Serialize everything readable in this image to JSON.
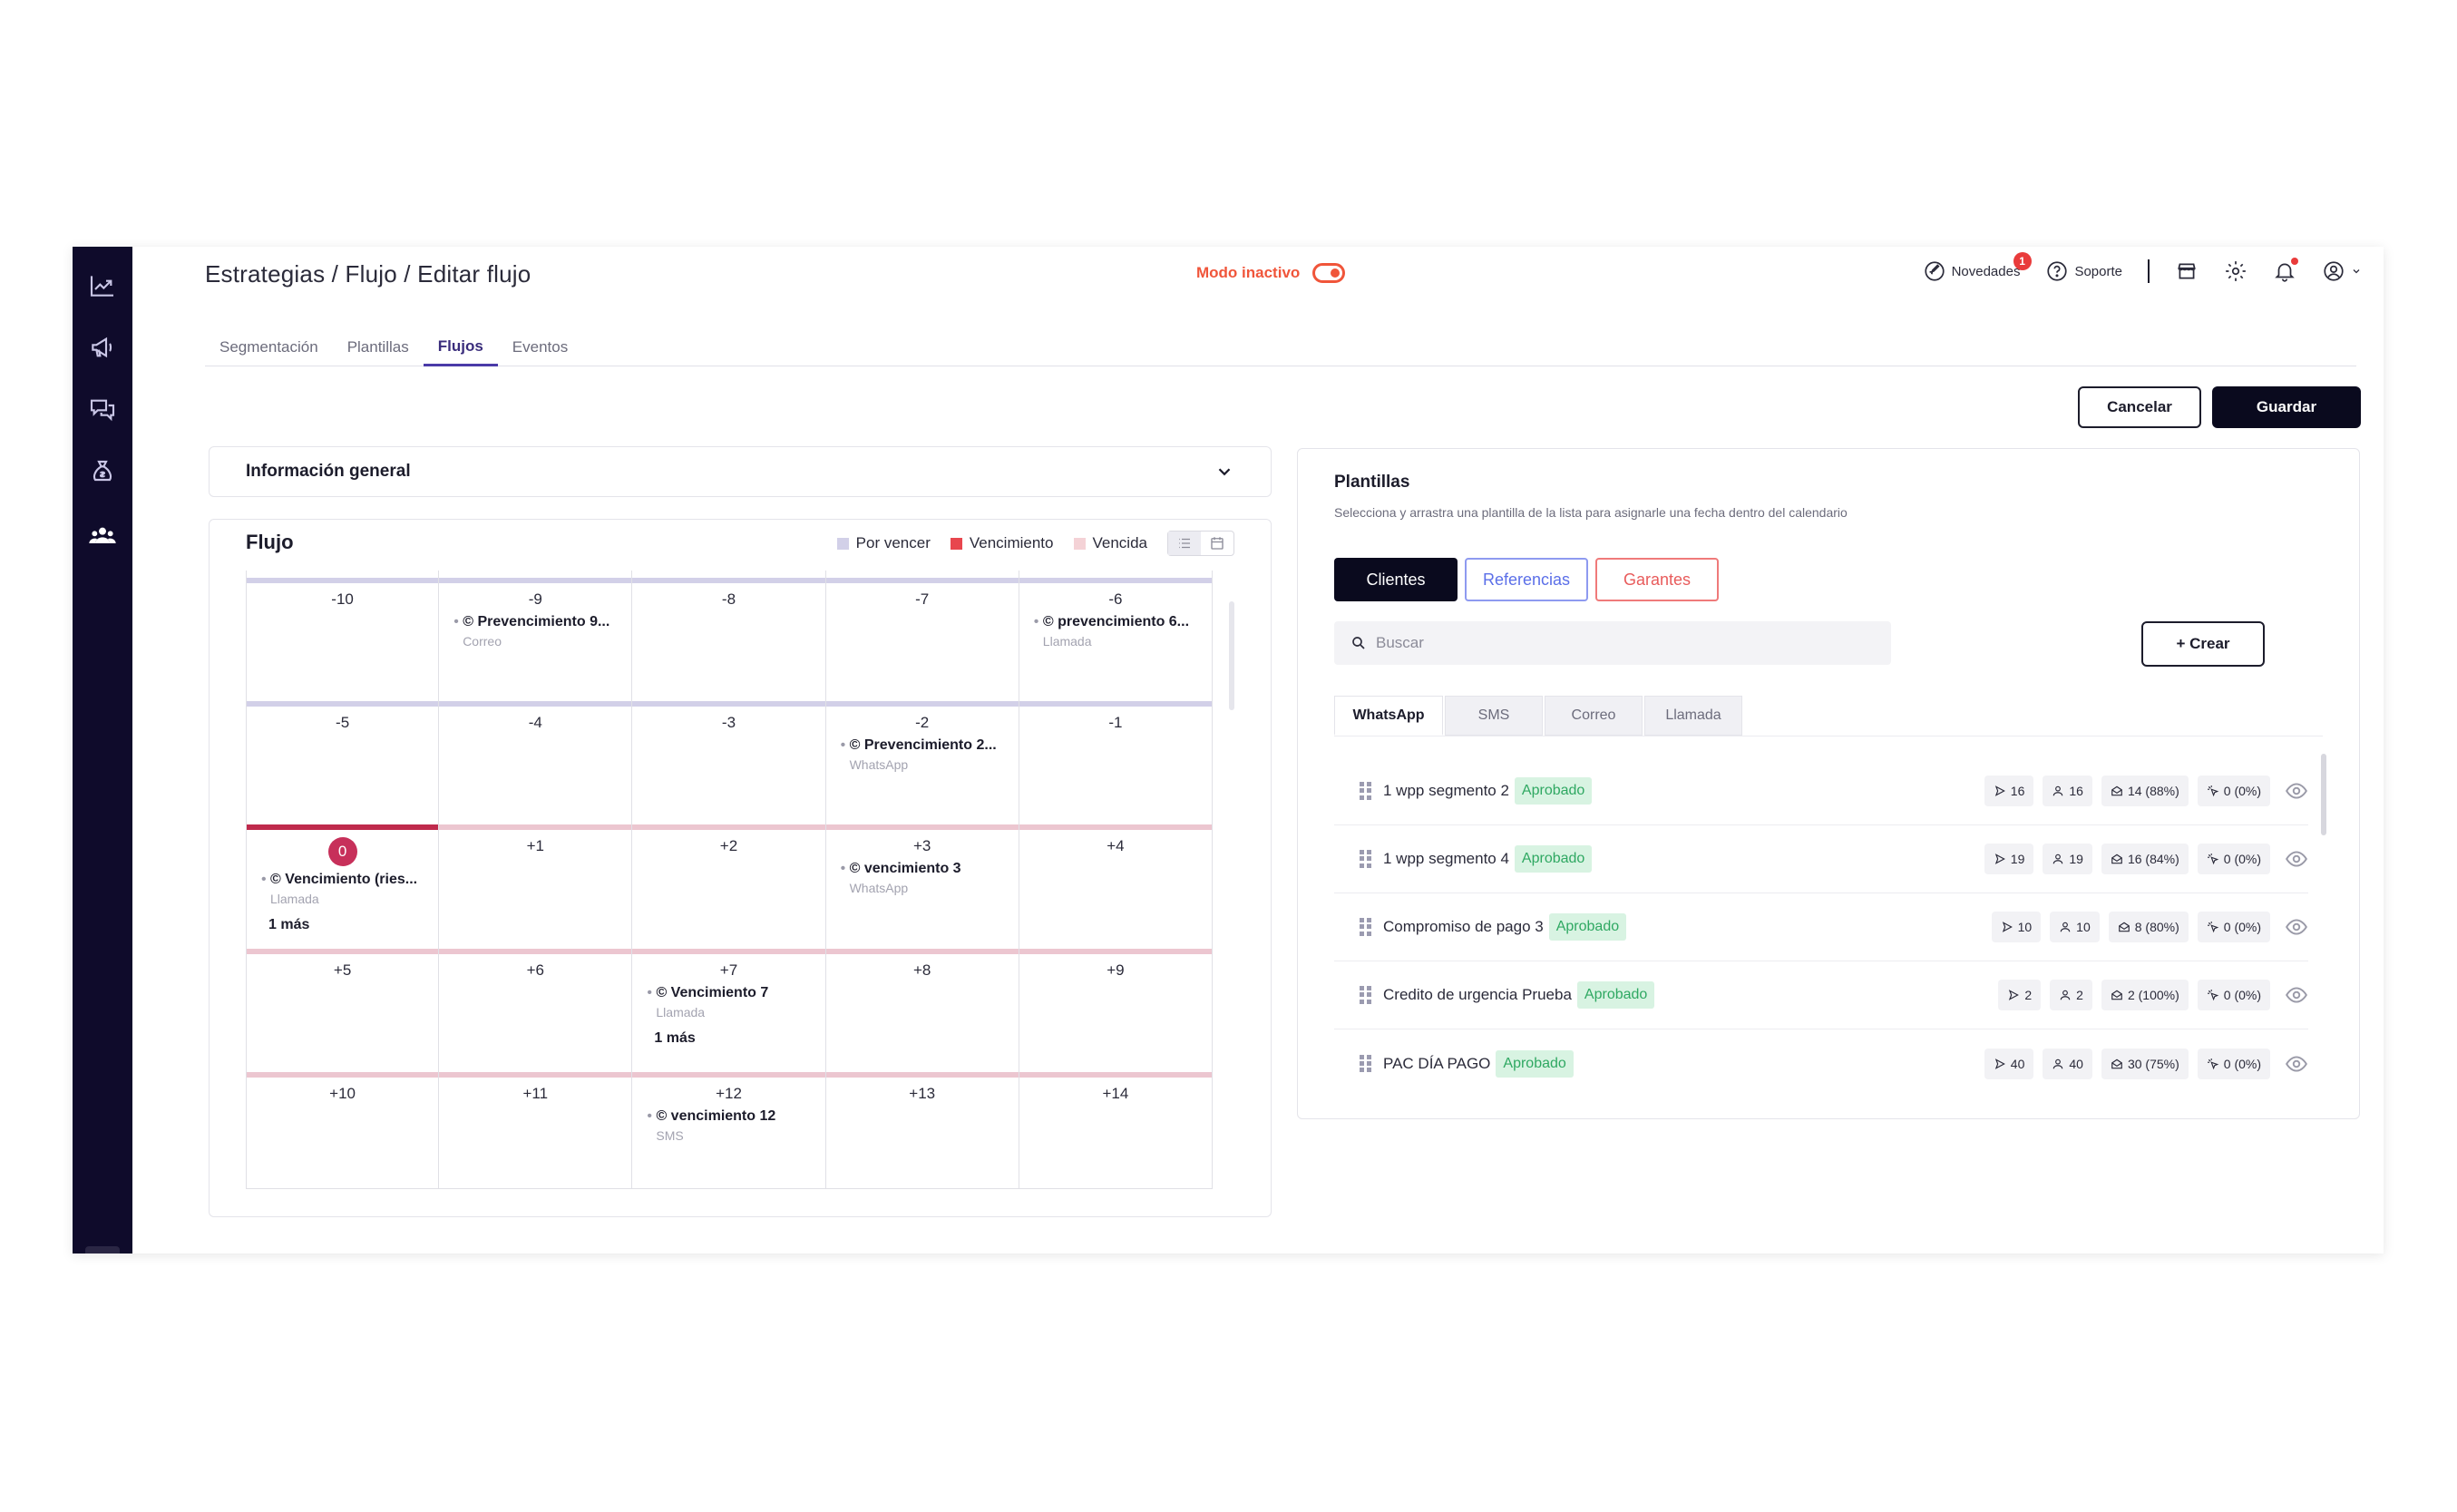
{
  "sidebar": {
    "items": [
      {
        "icon": "trend-chart-icon"
      },
      {
        "icon": "megaphone-icon"
      },
      {
        "icon": "chat-bubbles-icon"
      },
      {
        "icon": "money-bag-icon"
      },
      {
        "icon": "users-group-icon"
      }
    ]
  },
  "header": {
    "breadcrumb": "Estrategias / Flujo / Editar flujo",
    "mode_label": "Modo inactivo",
    "novedades": "Novedades",
    "novedades_count": "1",
    "soporte": "Soporte"
  },
  "tabs": [
    "Segmentación",
    "Plantillas",
    "Flujos",
    "Eventos"
  ],
  "actions": {
    "cancel": "Cancelar",
    "save": "Guardar"
  },
  "info": {
    "title": "Información general"
  },
  "flujo": {
    "title": "Flujo",
    "legend": [
      {
        "label": "Por vencer",
        "color": "#d2d0e8"
      },
      {
        "label": "Vencimiento",
        "color": "#e8464e"
      },
      {
        "label": "Vencida",
        "color": "#f4d2d6"
      }
    ],
    "cells": [
      {
        "day": "-10"
      },
      {
        "day": "-9",
        "event": "© Prevencimiento 9...",
        "channel": "Correo"
      },
      {
        "day": "-8"
      },
      {
        "day": "-7"
      },
      {
        "day": "-6",
        "event": "© prevencimiento 6...",
        "channel": "Llamada"
      },
      {
        "day": "-5"
      },
      {
        "day": "-4"
      },
      {
        "day": "-3"
      },
      {
        "day": "-2",
        "event": "© Prevencimiento 2...",
        "channel": "WhatsApp"
      },
      {
        "day": "-1"
      },
      {
        "day": "0",
        "event": "© Vencimiento (ries...",
        "channel": "Llamada",
        "more": "1 más"
      },
      {
        "day": "+1"
      },
      {
        "day": "+2"
      },
      {
        "day": "+3",
        "event": "© vencimiento 3",
        "channel": "WhatsApp"
      },
      {
        "day": "+4"
      },
      {
        "day": "+5"
      },
      {
        "day": "+6"
      },
      {
        "day": "+7",
        "event": "© Vencimiento 7",
        "channel": "Llamada",
        "more": "1 más"
      },
      {
        "day": "+8"
      },
      {
        "day": "+9"
      },
      {
        "day": "+10"
      },
      {
        "day": "+11"
      },
      {
        "day": "+12",
        "event": "© vencimiento 12",
        "channel": "SMS"
      },
      {
        "day": "+13"
      },
      {
        "day": "+14"
      }
    ]
  },
  "plantillas": {
    "title": "Plantillas",
    "subtitle": "Selecciona y arrastra una plantilla de la lista para asignarle una fecha dentro del calendario",
    "segments": [
      "Clientes",
      "Referencias",
      "Garantes"
    ],
    "search_placeholder": "Buscar",
    "create": "+ Crear",
    "channels": [
      "WhatsApp",
      "SMS",
      "Correo",
      "Llamada"
    ],
    "items": [
      {
        "name": "1 wpp segmento 2",
        "status": "Aprobado",
        "sent": "16",
        "users": "16",
        "read": "14 (88%)",
        "clicks": "0 (0%)"
      },
      {
        "name": "1 wpp segmento 4",
        "status": "Aprobado",
        "sent": "19",
        "users": "19",
        "read": "16 (84%)",
        "clicks": "0 (0%)"
      },
      {
        "name": "Compromiso de pago 3",
        "status": "Aprobado",
        "sent": "10",
        "users": "10",
        "read": "8 (80%)",
        "clicks": "0 (0%)"
      },
      {
        "name": "Credito de urgencia Prueba",
        "status": "Aprobado",
        "sent": "2",
        "users": "2",
        "read": "2 (100%)",
        "clicks": "0 (0%)"
      },
      {
        "name": "PAC DÍA PAGO",
        "status": "Aprobado",
        "sent": "40",
        "users": "40",
        "read": "30 (75%)",
        "clicks": "0 (0%)"
      }
    ]
  }
}
